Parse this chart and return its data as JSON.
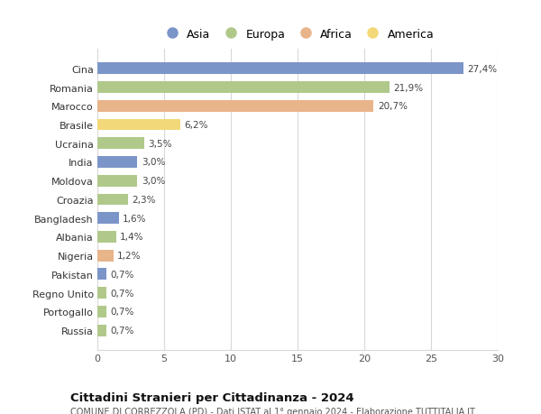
{
  "countries": [
    "Cina",
    "Romania",
    "Marocco",
    "Brasile",
    "Ucraina",
    "India",
    "Moldova",
    "Croazia",
    "Bangladesh",
    "Albania",
    "Nigeria",
    "Pakistan",
    "Regno Unito",
    "Portogallo",
    "Russia"
  ],
  "values": [
    27.4,
    21.9,
    20.7,
    6.2,
    3.5,
    3.0,
    3.0,
    2.3,
    1.6,
    1.4,
    1.2,
    0.7,
    0.7,
    0.7,
    0.7
  ],
  "labels": [
    "27,4%",
    "21,9%",
    "20,7%",
    "6,2%",
    "3,5%",
    "3,0%",
    "3,0%",
    "2,3%",
    "1,6%",
    "1,4%",
    "1,2%",
    "0,7%",
    "0,7%",
    "0,7%",
    "0,7%"
  ],
  "continents": [
    "Asia",
    "Europa",
    "Africa",
    "America",
    "Europa",
    "Asia",
    "Europa",
    "Europa",
    "Asia",
    "Europa",
    "Africa",
    "Asia",
    "Europa",
    "Europa",
    "Europa"
  ],
  "colors": {
    "Asia": "#7b95c8",
    "Europa": "#b0c98a",
    "Africa": "#e8b48a",
    "America": "#f2d878"
  },
  "legend_order": [
    "Asia",
    "Europa",
    "Africa",
    "America"
  ],
  "title": "Cittadini Stranieri per Cittadinanza - 2024",
  "subtitle": "COMUNE DI CORREZZOLA (PD) - Dati ISTAT al 1° gennaio 2024 - Elaborazione TUTTITALIA.IT",
  "xlim": [
    0,
    30
  ],
  "xticks": [
    0,
    5,
    10,
    15,
    20,
    25,
    30
  ],
  "background_color": "#ffffff",
  "grid_color": "#d8d8d8"
}
